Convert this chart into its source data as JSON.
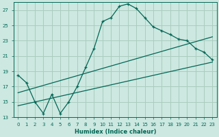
{
  "xlabel": "Humidex (Indice chaleur)",
  "ylabel": "",
  "background_color": "#cce8e0",
  "grid_color": "#aaccc0",
  "line_color": "#006655",
  "xlim": [
    -0.5,
    23.5
  ],
  "ylim": [
    13,
    28
  ],
  "yticks": [
    13,
    15,
    17,
    19,
    21,
    23,
    25,
    27
  ],
  "xticks": [
    0,
    1,
    2,
    3,
    4,
    5,
    6,
    7,
    8,
    9,
    10,
    11,
    12,
    13,
    14,
    15,
    16,
    17,
    18,
    19,
    20,
    21,
    22,
    23
  ],
  "line1_x": [
    0,
    1,
    2,
    3,
    4,
    5,
    6,
    7,
    8,
    9,
    10,
    11,
    12,
    13,
    14,
    15,
    16,
    17,
    18,
    19,
    20,
    21,
    22,
    23
  ],
  "line1_y": [
    18.5,
    17.5,
    15.0,
    13.5,
    16.0,
    13.5,
    15.0,
    17.0,
    19.5,
    22.0,
    25.5,
    26.0,
    27.5,
    27.8,
    27.2,
    26.0,
    24.8,
    24.3,
    23.8,
    23.2,
    23.0,
    22.0,
    21.5,
    20.5
  ],
  "line2_x": [
    0,
    23
  ],
  "line2_y": [
    14.5,
    20.2
  ],
  "line3_x": [
    0,
    23
  ],
  "line3_y": [
    16.2,
    23.5
  ]
}
